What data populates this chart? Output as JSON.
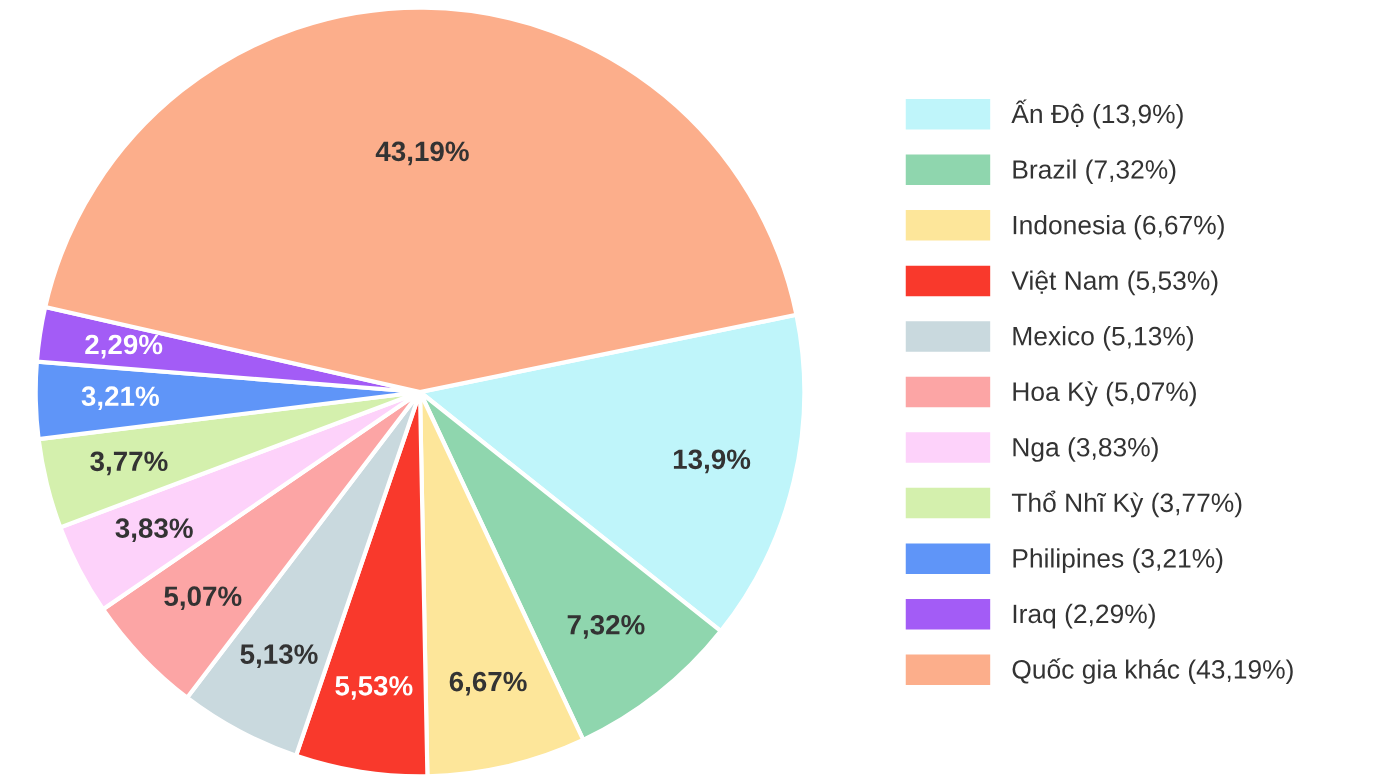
{
  "chart_data": {
    "type": "pie",
    "categories": [
      "Ấn Độ (13,9%)",
      "Brazil (7,32%)",
      "Indonesia (6,67%)",
      "Việt Nam (5,53%)",
      "Mexico (5,13%)",
      "Hoa Kỳ (5,07%)",
      "Nga (3,83%)",
      "Thổ Nhĩ Kỳ (3,77%)",
      "Philipines (3,21%)",
      "Iraq (2,29%)",
      "Quốc gia khác (43,19%)"
    ],
    "values": [
      13.9,
      7.32,
      6.67,
      5.53,
      5.13,
      5.07,
      3.83,
      3.77,
      3.21,
      2.29,
      43.19
    ],
    "value_labels": [
      "13,9%",
      "7,32%",
      "6,67%",
      "5,53%",
      "5,13%",
      "5,07%",
      "3,83%",
      "3,77%",
      "3,21%",
      "2,29%",
      "43,19%"
    ],
    "colors": [
      "#bff5fa",
      "#8fd6ae",
      "#fde69a",
      "#f9392c",
      "#c9d9de",
      "#fca5a5",
      "#fdd2fa",
      "#d4f0ad",
      "#5f95f8",
      "#a35cf6",
      "#fcae8b"
    ],
    "legend": "right"
  }
}
